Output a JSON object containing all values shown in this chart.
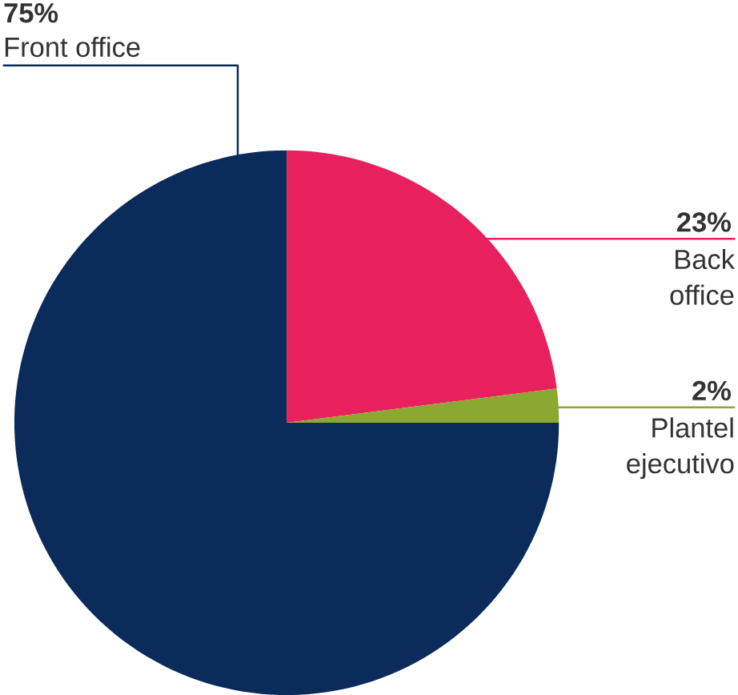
{
  "chart_data": {
    "type": "pie",
    "categories": [
      "Back office",
      "Plantel ejecutivo",
      "Front office"
    ],
    "values": [
      23,
      2,
      75
    ],
    "value_labels": [
      "23%",
      "2%",
      "75%"
    ],
    "colors": [
      "#e8215e",
      "#8aa832",
      "#0b2b5a"
    ]
  }
}
